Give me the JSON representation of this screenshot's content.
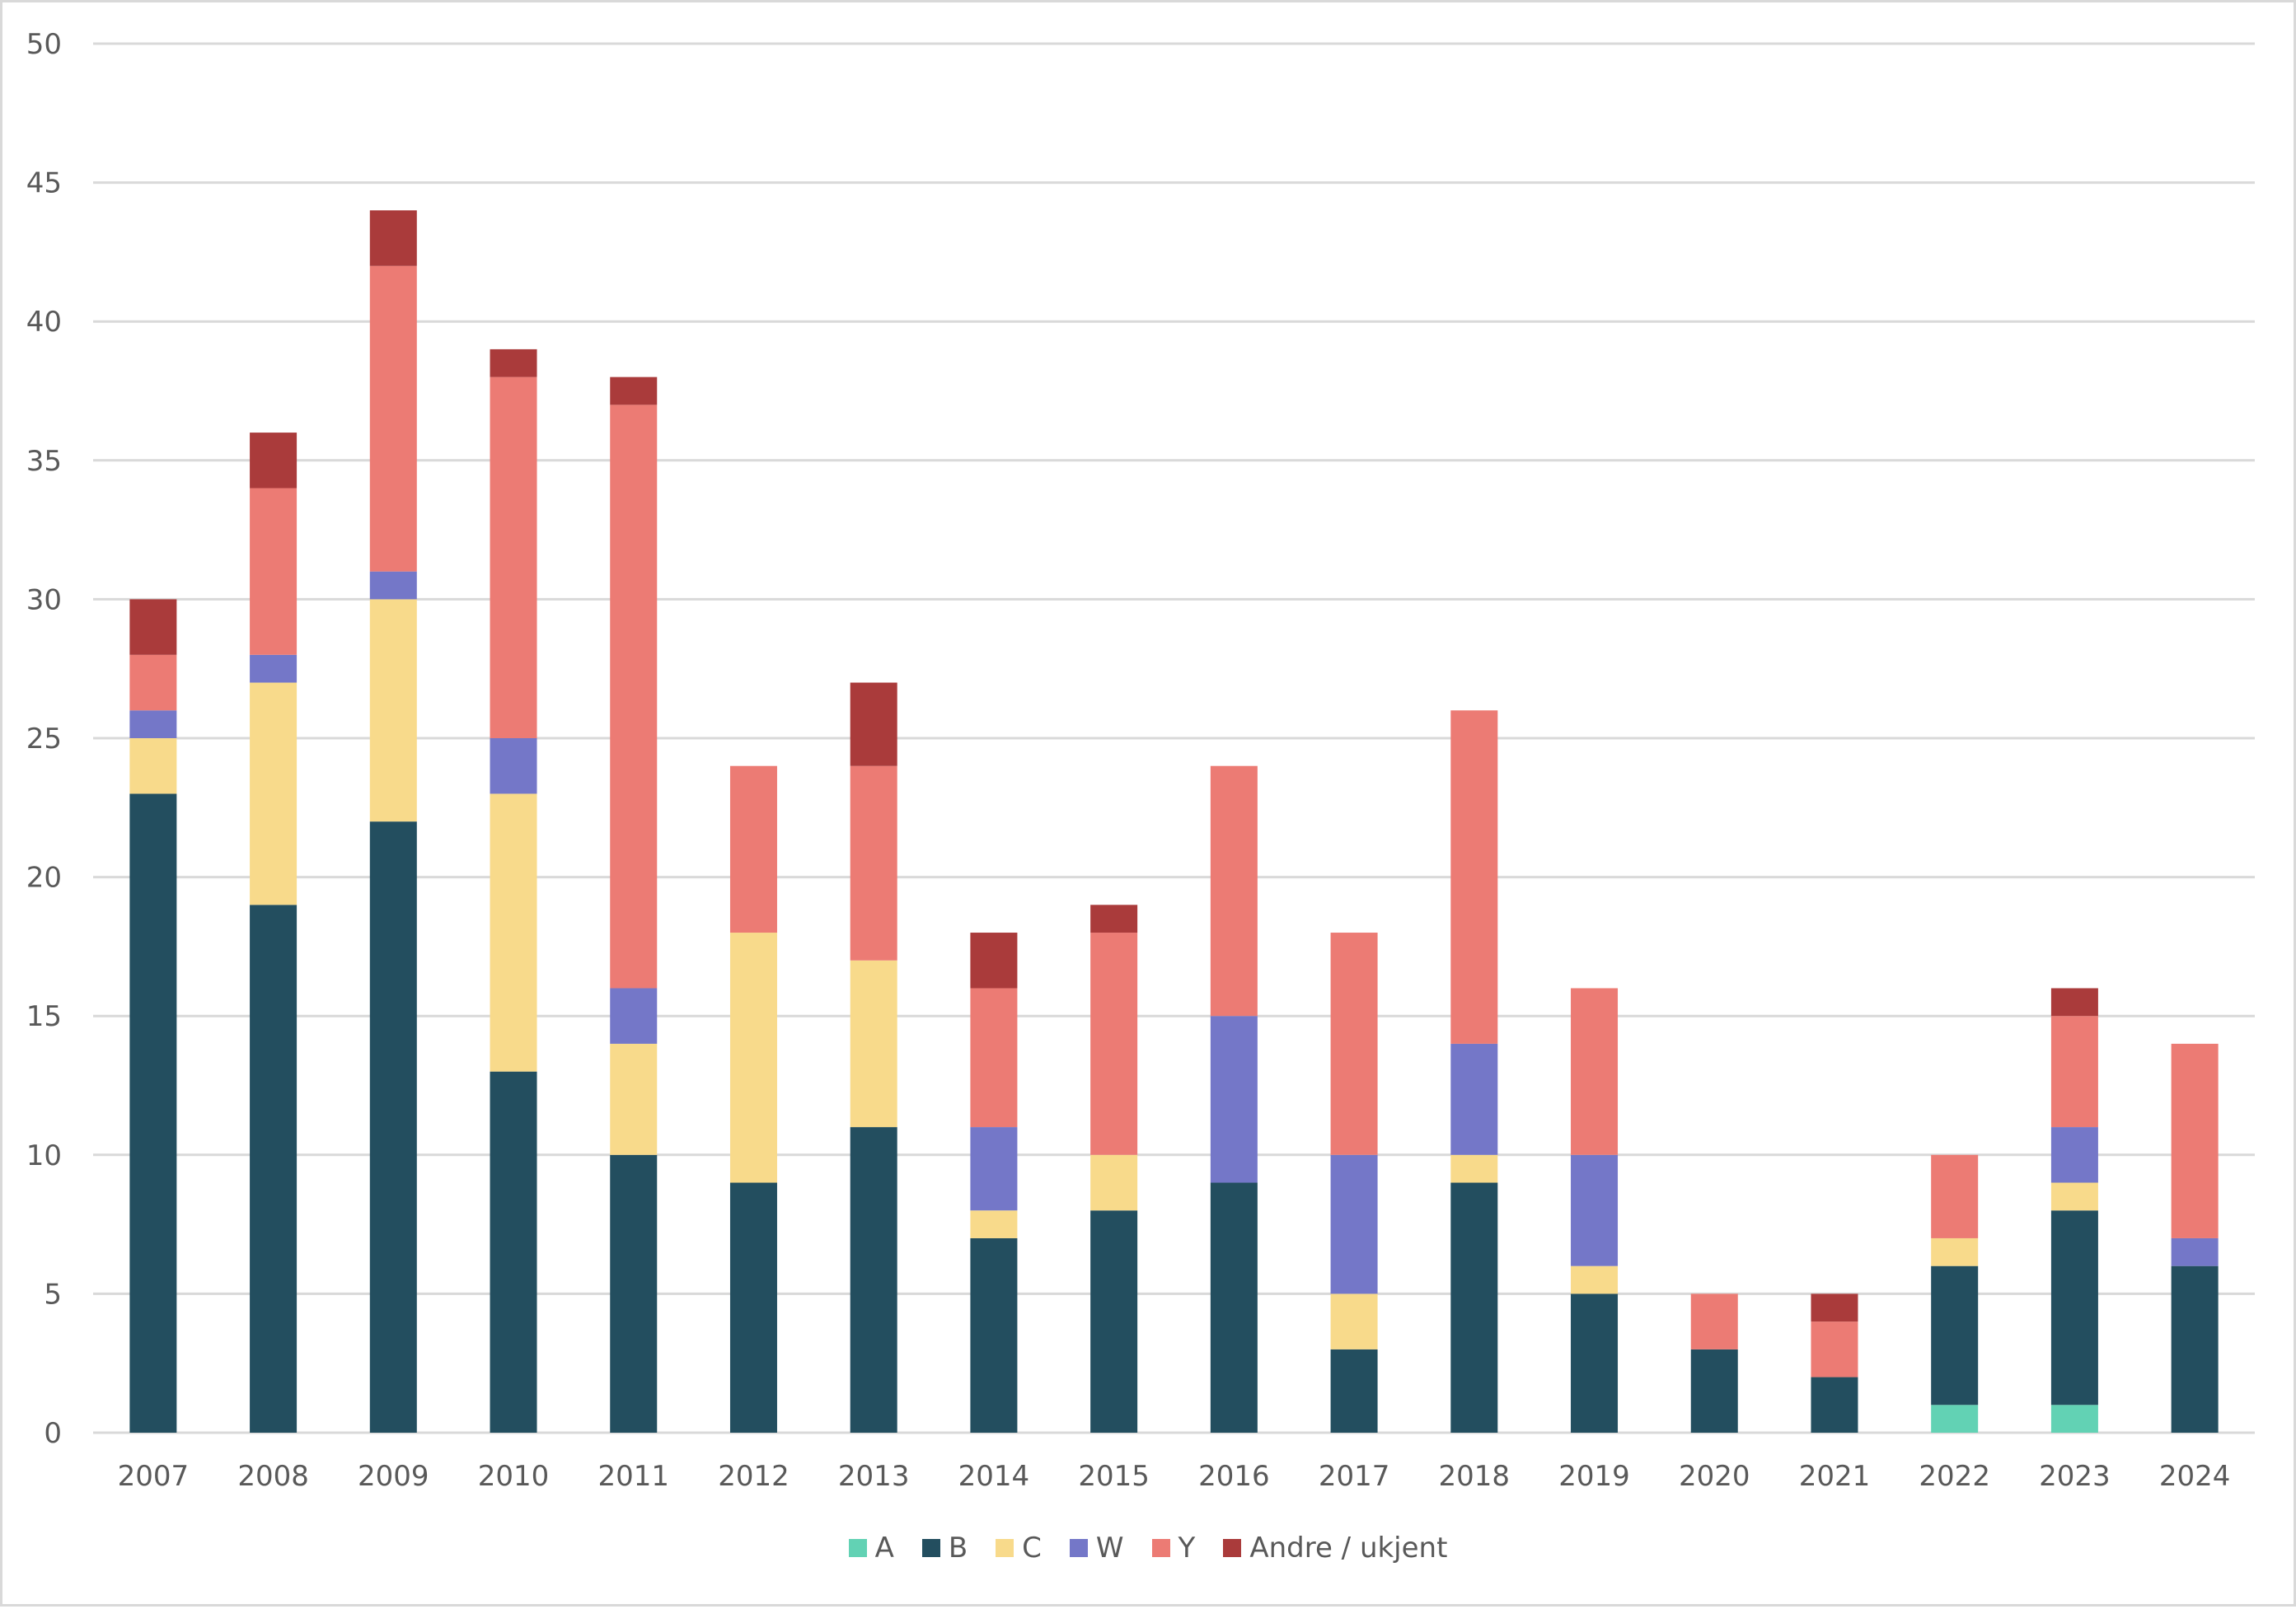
{
  "chart_data": {
    "type": "bar",
    "stacked": true,
    "title": "",
    "xlabel": "",
    "ylabel": "",
    "ylim": [
      0,
      50
    ],
    "yticks": [
      0,
      5,
      10,
      15,
      20,
      25,
      30,
      35,
      40,
      45,
      50
    ],
    "grid": true,
    "legend_position": "bottom",
    "categories": [
      "2007",
      "2008",
      "2009",
      "2010",
      "2011",
      "2012",
      "2013",
      "2014",
      "2015",
      "2016",
      "2017",
      "2018",
      "2019",
      "2020",
      "2021",
      "2022",
      "2023",
      "2024"
    ],
    "series": [
      {
        "name": "A",
        "color": "#62d2b4",
        "values": [
          0,
          0,
          0,
          0,
          0,
          0,
          0,
          0,
          0,
          0,
          0,
          0,
          0,
          0,
          0,
          1,
          1,
          0
        ]
      },
      {
        "name": "B",
        "color": "#234e5f",
        "values": [
          23,
          19,
          22,
          13,
          10,
          9,
          11,
          7,
          8,
          9,
          3,
          9,
          5,
          3,
          2,
          5,
          7,
          6
        ]
      },
      {
        "name": "C",
        "color": "#f8da8b",
        "values": [
          2,
          8,
          8,
          10,
          4,
          9,
          6,
          1,
          2,
          0,
          2,
          1,
          1,
          0,
          0,
          1,
          1,
          0
        ]
      },
      {
        "name": "W",
        "color": "#7477c8",
        "values": [
          1,
          1,
          1,
          2,
          2,
          0,
          0,
          3,
          0,
          6,
          5,
          4,
          4,
          0,
          0,
          0,
          2,
          1
        ]
      },
      {
        "name": "Y",
        "color": "#ec7b74",
        "values": [
          2,
          6,
          11,
          13,
          21,
          6,
          7,
          5,
          8,
          9,
          8,
          12,
          6,
          2,
          2,
          3,
          4,
          7
        ]
      },
      {
        "name": "Andre / ukjent",
        "color": "#aa3b3b",
        "values": [
          2,
          2,
          2,
          1,
          1,
          0,
          3,
          2,
          1,
          0,
          0,
          0,
          0,
          0,
          1,
          0,
          1,
          0
        ]
      }
    ]
  }
}
